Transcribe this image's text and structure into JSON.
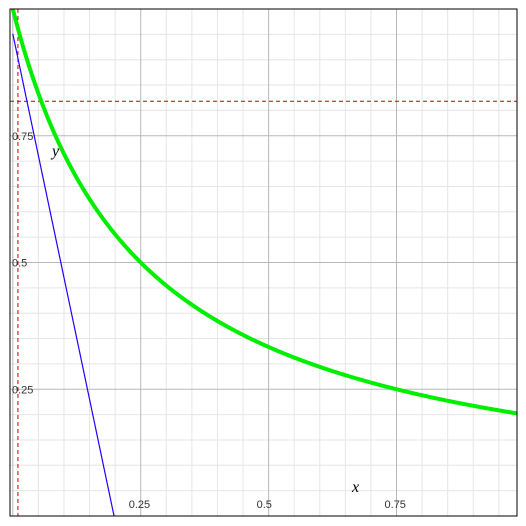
{
  "chart_data": {
    "type": "line",
    "title": "",
    "xlabel": "x",
    "ylabel": "y",
    "xlim": [
      -0.0055,
      0.9855
    ],
    "ylim": [
      0.0,
      1.0
    ],
    "grid": true,
    "minor_grid": true,
    "x_ticks": [
      {
        "value": 0.25,
        "label": "0.25"
      },
      {
        "value": 0.5,
        "label": "0.5"
      },
      {
        "value": 0.75,
        "label": "0.75"
      }
    ],
    "y_ticks": [
      {
        "value": 0.25,
        "label": "0.25"
      },
      {
        "value": 0.5,
        "label": "0.5"
      },
      {
        "value": 0.75,
        "label": "0.75"
      }
    ],
    "series": [
      {
        "kind": "curve",
        "function": "1 / (1 + 4x)",
        "color": "#00ee00",
        "x": [
          -0.0055,
          0.0,
          0.05,
          0.1,
          0.15,
          0.2,
          0.25,
          0.3,
          0.35,
          0.4,
          0.45,
          0.5,
          0.55,
          0.6,
          0.65,
          0.7,
          0.75,
          0.8,
          0.85,
          0.9,
          0.95,
          0.9855
        ],
        "y": [
          1.022,
          1.0,
          0.833,
          0.714,
          0.625,
          0.556,
          0.5,
          0.455,
          0.417,
          0.385,
          0.357,
          0.333,
          0.313,
          0.294,
          0.278,
          0.263,
          0.25,
          0.238,
          0.227,
          0.217,
          0.208,
          0.202
        ]
      },
      {
        "kind": "tangent-line",
        "color": "#2200ff",
        "x": [
          0.0,
          0.211
        ],
        "y": [
          0.951,
          -0.063
        ]
      }
    ],
    "reference_lines": [
      {
        "orientation": "vertical",
        "value": 0.01,
        "color": "#cc0000",
        "style": "dashed"
      },
      {
        "orientation": "horizontal",
        "value": 0.818,
        "color": "#cc0000",
        "style": "dashed"
      }
    ]
  }
}
